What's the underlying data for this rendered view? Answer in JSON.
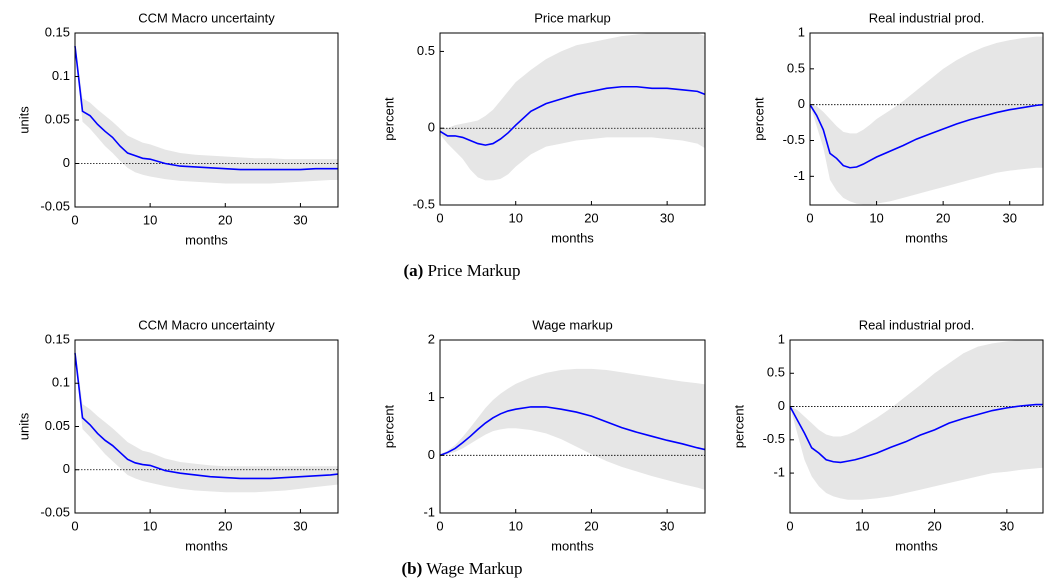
{
  "chart_data": [
    {
      "type": "line",
      "title": "CCM Macro uncertainty",
      "xlabel": "months",
      "ylabel": "units",
      "x": [
        0,
        1,
        2,
        3,
        4,
        5,
        6,
        7,
        8,
        9,
        10,
        12,
        14,
        16,
        18,
        20,
        22,
        24,
        26,
        28,
        30,
        32,
        34,
        35
      ],
      "xlim": [
        0,
        35
      ],
      "xticks": [
        0,
        10,
        20,
        30
      ],
      "ylim": [
        -0.05,
        0.15
      ],
      "yticks": [
        -0.05,
        0,
        0.05,
        0.1,
        0.15
      ],
      "zero_line": true,
      "series": [
        {
          "color": "#0000ff",
          "values": [
            0.135,
            0.06,
            0.055,
            0.045,
            0.037,
            0.03,
            0.02,
            0.012,
            0.009,
            0.006,
            0.005,
            0,
            -0.003,
            -0.004,
            -0.005,
            -0.006,
            -0.007,
            -0.007,
            -0.007,
            -0.007,
            -0.007,
            -0.006,
            -0.006,
            -0.006
          ],
          "band": {
            "color": "#e6e6e6",
            "upper": [
              0.14,
              0.075,
              0.07,
              0.062,
              0.055,
              0.048,
              0.04,
              0.032,
              0.028,
              0.024,
              0.022,
              0.016,
              0.012,
              0.01,
              0.009,
              0.008,
              0.007,
              0.006,
              0.006,
              0.005,
              0.005,
              0.005,
              0.005,
              0.005
            ],
            "lower": [
              0.13,
              0.048,
              0.04,
              0.03,
              0.02,
              0.012,
              0.003,
              -0.005,
              -0.01,
              -0.013,
              -0.015,
              -0.018,
              -0.02,
              -0.021,
              -0.022,
              -0.023,
              -0.023,
              -0.023,
              -0.023,
              -0.022,
              -0.021,
              -0.02,
              -0.019,
              -0.019
            ]
          }
        }
      ]
    },
    {
      "type": "line",
      "title": "Price markup",
      "xlabel": "months",
      "ylabel": "percent",
      "x": [
        0,
        1,
        2,
        3,
        4,
        5,
        6,
        7,
        8,
        9,
        10,
        12,
        14,
        16,
        18,
        20,
        22,
        24,
        26,
        28,
        30,
        32,
        34,
        35
      ],
      "xlim": [
        0,
        35
      ],
      "xticks": [
        0,
        10,
        20,
        30
      ],
      "ylim": [
        -0.5,
        0.62
      ],
      "yticks": [
        -0.5,
        0,
        0.5
      ],
      "zero_line": true,
      "series": [
        {
          "color": "#0000ff",
          "values": [
            -0.02,
            -0.05,
            -0.05,
            -0.06,
            -0.08,
            -0.1,
            -0.11,
            -0.1,
            -0.07,
            -0.03,
            0.02,
            0.11,
            0.16,
            0.19,
            0.22,
            0.24,
            0.26,
            0.27,
            0.27,
            0.26,
            0.26,
            0.25,
            0.24,
            0.22
          ],
          "band": {
            "color": "#e6e6e6",
            "upper": [
              0,
              0,
              0.02,
              0.03,
              0.04,
              0.05,
              0.08,
              0.12,
              0.18,
              0.24,
              0.3,
              0.38,
              0.45,
              0.5,
              0.54,
              0.56,
              0.58,
              0.6,
              0.61,
              0.62,
              0.62,
              0.62,
              0.62,
              0.6
            ],
            "lower": [
              -0.04,
              -0.1,
              -0.15,
              -0.2,
              -0.27,
              -0.32,
              -0.34,
              -0.34,
              -0.33,
              -0.3,
              -0.25,
              -0.17,
              -0.12,
              -0.1,
              -0.08,
              -0.07,
              -0.06,
              -0.06,
              -0.06,
              -0.06,
              -0.07,
              -0.08,
              -0.1,
              -0.13
            ]
          }
        }
      ]
    },
    {
      "type": "line",
      "title": "Real industrial prod.",
      "xlabel": "months",
      "ylabel": "percent",
      "x": [
        0,
        1,
        2,
        3,
        4,
        5,
        6,
        7,
        8,
        9,
        10,
        12,
        14,
        16,
        18,
        20,
        22,
        24,
        26,
        28,
        30,
        32,
        34,
        35
      ],
      "xlim": [
        0,
        35
      ],
      "xticks": [
        0,
        10,
        20,
        30
      ],
      "ylim": [
        -1.4,
        1
      ],
      "yticks": [
        -1,
        -0.5,
        0,
        0.5,
        1
      ],
      "zero_line": true,
      "series": [
        {
          "color": "#0000ff",
          "values": [
            0,
            -0.15,
            -0.35,
            -0.68,
            -0.75,
            -0.85,
            -0.88,
            -0.87,
            -0.83,
            -0.78,
            -0.73,
            -0.65,
            -0.57,
            -0.48,
            -0.41,
            -0.34,
            -0.27,
            -0.21,
            -0.16,
            -0.11,
            -0.07,
            -0.04,
            -0.01,
            0
          ],
          "band": {
            "color": "#e6e6e6",
            "upper": [
              0,
              -0.02,
              -0.1,
              -0.2,
              -0.3,
              -0.38,
              -0.4,
              -0.4,
              -0.35,
              -0.28,
              -0.2,
              -0.08,
              0.05,
              0.2,
              0.35,
              0.5,
              0.62,
              0.72,
              0.8,
              0.86,
              0.9,
              0.93,
              0.95,
              0.95
            ],
            "lower": [
              0,
              -0.3,
              -0.6,
              -1.05,
              -1.2,
              -1.3,
              -1.35,
              -1.38,
              -1.39,
              -1.39,
              -1.38,
              -1.35,
              -1.3,
              -1.25,
              -1.2,
              -1.15,
              -1.1,
              -1.05,
              -1,
              -0.95,
              -0.92,
              -0.9,
              -0.88,
              -0.88
            ]
          }
        }
      ]
    },
    {
      "type": "line",
      "title": "CCM Macro uncertainty",
      "xlabel": "months",
      "ylabel": "units",
      "x": [
        0,
        1,
        2,
        3,
        4,
        5,
        6,
        7,
        8,
        9,
        10,
        12,
        14,
        16,
        18,
        20,
        22,
        24,
        26,
        28,
        30,
        32,
        34,
        35
      ],
      "xlim": [
        0,
        35
      ],
      "xticks": [
        0,
        10,
        20,
        30
      ],
      "ylim": [
        -0.05,
        0.15
      ],
      "yticks": [
        -0.05,
        0,
        0.05,
        0.1,
        0.15
      ],
      "zero_line": true,
      "series": [
        {
          "color": "#0000ff",
          "values": [
            0.135,
            0.06,
            0.052,
            0.042,
            0.034,
            0.028,
            0.02,
            0.012,
            0.008,
            0.006,
            0.005,
            -0.001,
            -0.004,
            -0.006,
            -0.008,
            -0.009,
            -0.01,
            -0.01,
            -0.01,
            -0.009,
            -0.008,
            -0.007,
            -0.006,
            -0.005
          ],
          "band": {
            "color": "#e6e6e6",
            "upper": [
              0.14,
              0.076,
              0.07,
              0.062,
              0.055,
              0.048,
              0.04,
              0.032,
              0.027,
              0.022,
              0.02,
              0.013,
              0.009,
              0.007,
              0.005,
              0.004,
              0.004,
              0.004,
              0.004,
              0.004,
              0.004,
              0.004,
              0.004,
              0.004
            ],
            "lower": [
              0.13,
              0.047,
              0.038,
              0.028,
              0.018,
              0.01,
              0.002,
              -0.006,
              -0.01,
              -0.013,
              -0.015,
              -0.019,
              -0.022,
              -0.024,
              -0.025,
              -0.026,
              -0.026,
              -0.026,
              -0.025,
              -0.024,
              -0.022,
              -0.02,
              -0.018,
              -0.017
            ]
          }
        }
      ]
    },
    {
      "type": "line",
      "title": "Wage markup",
      "xlabel": "months",
      "ylabel": "percent",
      "x": [
        0,
        1,
        2,
        3,
        4,
        5,
        6,
        7,
        8,
        9,
        10,
        12,
        14,
        16,
        18,
        20,
        22,
        24,
        26,
        28,
        30,
        32,
        34,
        35
      ],
      "xlim": [
        0,
        35
      ],
      "xticks": [
        0,
        10,
        20,
        30
      ],
      "ylim": [
        -1,
        2
      ],
      "yticks": [
        -1,
        0,
        1,
        2
      ],
      "zero_line": true,
      "series": [
        {
          "color": "#0000ff",
          "values": [
            0,
            0.05,
            0.12,
            0.22,
            0.33,
            0.45,
            0.56,
            0.65,
            0.72,
            0.77,
            0.8,
            0.84,
            0.84,
            0.8,
            0.75,
            0.68,
            0.58,
            0.48,
            0.4,
            0.33,
            0.26,
            0.2,
            0.13,
            0.1
          ],
          "band": {
            "color": "#e6e6e6",
            "upper": [
              0.02,
              0.08,
              0.18,
              0.32,
              0.48,
              0.65,
              0.82,
              0.96,
              1.07,
              1.16,
              1.24,
              1.35,
              1.43,
              1.48,
              1.5,
              1.5,
              1.48,
              1.44,
              1.4,
              1.36,
              1.32,
              1.28,
              1.25,
              1.23
            ],
            "lower": [
              -0.02,
              0.02,
              0.06,
              0.12,
              0.2,
              0.28,
              0.36,
              0.42,
              0.45,
              0.47,
              0.47,
              0.44,
              0.38,
              0.28,
              0.15,
              0.02,
              -0.1,
              -0.2,
              -0.28,
              -0.36,
              -0.43,
              -0.5,
              -0.56,
              -0.6
            ]
          }
        }
      ]
    },
    {
      "type": "line",
      "title": "Real industrial prod.",
      "xlabel": "months",
      "ylabel": "percent",
      "x": [
        0,
        1,
        2,
        3,
        4,
        5,
        6,
        7,
        8,
        9,
        10,
        12,
        14,
        16,
        18,
        20,
        22,
        24,
        26,
        28,
        30,
        32,
        34,
        35
      ],
      "xlim": [
        0,
        35
      ],
      "xticks": [
        0,
        10,
        20,
        30
      ],
      "ylim": [
        -1.6,
        1
      ],
      "yticks": [
        -1,
        -0.5,
        0,
        0.5,
        1
      ],
      "zero_line": true,
      "series": [
        {
          "color": "#0000ff",
          "values": [
            0,
            -0.2,
            -0.4,
            -0.62,
            -0.7,
            -0.8,
            -0.83,
            -0.84,
            -0.82,
            -0.8,
            -0.77,
            -0.7,
            -0.61,
            -0.53,
            -0.43,
            -0.35,
            -0.25,
            -0.18,
            -0.12,
            -0.06,
            -0.02,
            0.01,
            0.03,
            0.03
          ],
          "band": {
            "color": "#e6e6e6",
            "upper": [
              0,
              -0.05,
              -0.15,
              -0.25,
              -0.35,
              -0.42,
              -0.45,
              -0.45,
              -0.42,
              -0.37,
              -0.3,
              -0.17,
              -0.02,
              0.15,
              0.32,
              0.5,
              0.65,
              0.8,
              0.9,
              0.95,
              0.98,
              1,
              1,
              1
            ],
            "lower": [
              0,
              -0.4,
              -0.8,
              -1.05,
              -1.2,
              -1.3,
              -1.35,
              -1.38,
              -1.4,
              -1.4,
              -1.4,
              -1.38,
              -1.35,
              -1.3,
              -1.25,
              -1.2,
              -1.15,
              -1.1,
              -1.05,
              -1,
              -0.98,
              -0.95,
              -0.93,
              -0.92
            ]
          }
        }
      ]
    }
  ],
  "captions": [
    {
      "label": "(a)",
      "text": "Price Markup"
    },
    {
      "label": "(b)",
      "text": "Wage Markup"
    }
  ]
}
